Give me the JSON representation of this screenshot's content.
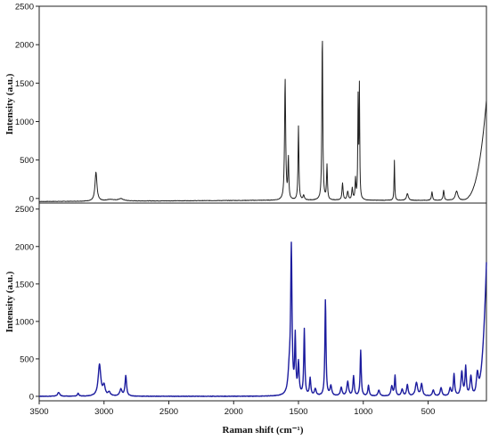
{
  "chart_data": [
    {
      "type": "line",
      "panel": "top",
      "title": "",
      "xlabel": "",
      "ylabel": "Intensity (a.u.)",
      "xlim": [
        3500,
        50
      ],
      "ylim": [
        -60,
        2500
      ],
      "x_reversed": true,
      "show_x_ticks": false,
      "yticks": [
        0,
        500,
        1000,
        1500,
        2000,
        2500
      ],
      "grid": false,
      "legend": "none",
      "series": [
        {
          "color": "#222222",
          "peaks": [
            {
              "x": 3062,
              "h": 375,
              "w": 9
            },
            {
              "x": 2950,
              "h": 20,
              "w": 40
            },
            {
              "x": 2870,
              "h": 28,
              "w": 25
            },
            {
              "x": 1603,
              "h": 1575,
              "w": 5
            },
            {
              "x": 1578,
              "h": 530,
              "w": 4
            },
            {
              "x": 1500,
              "h": 960,
              "w": 4
            },
            {
              "x": 1460,
              "h": 60,
              "w": 6
            },
            {
              "x": 1316,
              "h": 2190,
              "w": 4
            },
            {
              "x": 1280,
              "h": 450,
              "w": 4
            },
            {
              "x": 1160,
              "h": 220,
              "w": 5
            },
            {
              "x": 1120,
              "h": 110,
              "w": 6
            },
            {
              "x": 1085,
              "h": 150,
              "w": 5
            },
            {
              "x": 1060,
              "h": 260,
              "w": 4
            },
            {
              "x": 1040,
              "h": 1280,
              "w": 3
            },
            {
              "x": 1030,
              "h": 1440,
              "w": 3
            },
            {
              "x": 760,
              "h": 520,
              "w": 3
            },
            {
              "x": 660,
              "h": 90,
              "w": 8
            },
            {
              "x": 470,
              "h": 110,
              "w": 5
            },
            {
              "x": 380,
              "h": 130,
              "w": 5
            },
            {
              "x": 280,
              "h": 120,
              "w": 12
            }
          ],
          "baseline": {
            "start": -40,
            "mid": -25,
            "tail_x": 260,
            "tail_end": 1280
          }
        }
      ]
    },
    {
      "type": "line",
      "panel": "bottom",
      "title": "",
      "xlabel": "Raman shift (cm⁻¹)",
      "ylabel": "Intensity (a.u.)",
      "xlim": [
        3500,
        50
      ],
      "ylim": [
        -60,
        2580
      ],
      "x_reversed": true,
      "xticks": [
        3500,
        3000,
        2500,
        2000,
        1500,
        1000,
        500
      ],
      "yticks": [
        0,
        500,
        1000,
        1500,
        2000,
        2500
      ],
      "grid": false,
      "legend": "none",
      "series": [
        {
          "color": "#1c1c9e",
          "peaks": [
            {
              "x": 3350,
              "h": 50,
              "w": 10
            },
            {
              "x": 3200,
              "h": 40,
              "w": 6
            },
            {
              "x": 3035,
              "h": 420,
              "w": 12
            },
            {
              "x": 3000,
              "h": 130,
              "w": 10
            },
            {
              "x": 2960,
              "h": 50,
              "w": 10
            },
            {
              "x": 2870,
              "h": 90,
              "w": 10
            },
            {
              "x": 2832,
              "h": 270,
              "w": 7
            },
            {
              "x": 1570,
              "h": 330,
              "w": 12
            },
            {
              "x": 1555,
              "h": 1900,
              "w": 6
            },
            {
              "x": 1525,
              "h": 760,
              "w": 5
            },
            {
              "x": 1500,
              "h": 420,
              "w": 6
            },
            {
              "x": 1455,
              "h": 880,
              "w": 5
            },
            {
              "x": 1410,
              "h": 230,
              "w": 6
            },
            {
              "x": 1370,
              "h": 90,
              "w": 8
            },
            {
              "x": 1292,
              "h": 1290,
              "w": 5
            },
            {
              "x": 1250,
              "h": 130,
              "w": 8
            },
            {
              "x": 1170,
              "h": 110,
              "w": 8
            },
            {
              "x": 1120,
              "h": 190,
              "w": 8
            },
            {
              "x": 1075,
              "h": 260,
              "w": 6
            },
            {
              "x": 1020,
              "h": 610,
              "w": 5
            },
            {
              "x": 960,
              "h": 140,
              "w": 6
            },
            {
              "x": 880,
              "h": 80,
              "w": 8
            },
            {
              "x": 780,
              "h": 130,
              "w": 8
            },
            {
              "x": 755,
              "h": 270,
              "w": 5
            },
            {
              "x": 700,
              "h": 90,
              "w": 8
            },
            {
              "x": 660,
              "h": 150,
              "w": 7
            },
            {
              "x": 590,
              "h": 180,
              "w": 10
            },
            {
              "x": 550,
              "h": 160,
              "w": 8
            },
            {
              "x": 460,
              "h": 80,
              "w": 8
            },
            {
              "x": 400,
              "h": 110,
              "w": 8
            },
            {
              "x": 330,
              "h": 100,
              "w": 8
            },
            {
              "x": 300,
              "h": 290,
              "w": 6
            },
            {
              "x": 240,
              "h": 320,
              "w": 8
            },
            {
              "x": 210,
              "h": 380,
              "w": 6
            },
            {
              "x": 170,
              "h": 260,
              "w": 8
            },
            {
              "x": 120,
              "h": 300,
              "w": 10
            }
          ],
          "baseline": {
            "start": 0,
            "mid": 0,
            "tail_x": 150,
            "tail_end": 1780
          }
        }
      ]
    }
  ]
}
